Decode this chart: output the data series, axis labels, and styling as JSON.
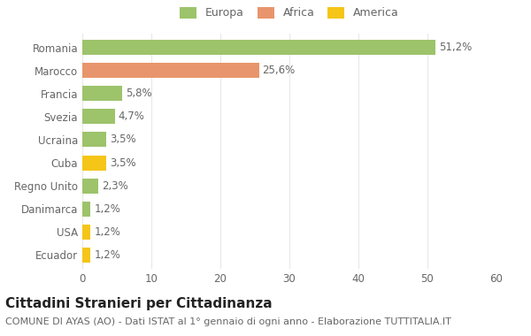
{
  "categories": [
    "Ecuador",
    "USA",
    "Danimarca",
    "Regno Unito",
    "Cuba",
    "Ucraina",
    "Svezia",
    "Francia",
    "Marocco",
    "Romania"
  ],
  "values": [
    1.2,
    1.2,
    1.2,
    2.3,
    3.5,
    3.5,
    4.7,
    5.8,
    25.6,
    51.2
  ],
  "labels": [
    "1,2%",
    "1,2%",
    "1,2%",
    "2,3%",
    "3,5%",
    "3,5%",
    "4,7%",
    "5,8%",
    "25,6%",
    "51,2%"
  ],
  "colors": [
    "#f5c518",
    "#f5c518",
    "#9dc36b",
    "#9dc36b",
    "#f5c518",
    "#9dc36b",
    "#9dc36b",
    "#9dc36b",
    "#e8956d",
    "#9dc36b"
  ],
  "legend": [
    {
      "label": "Europa",
      "color": "#9dc36b"
    },
    {
      "label": "Africa",
      "color": "#e8956d"
    },
    {
      "label": "America",
      "color": "#f5c518"
    }
  ],
  "title": "Cittadini Stranieri per Cittadinanza",
  "subtitle": "COMUNE DI AYAS (AO) - Dati ISTAT al 1° gennaio di ogni anno - Elaborazione TUTTITALIA.IT",
  "xlim": [
    0,
    60
  ],
  "xticks": [
    0,
    10,
    20,
    30,
    40,
    50,
    60
  ],
  "background_color": "#ffffff",
  "grid_color": "#e8e8e8",
  "bar_height": 0.65,
  "title_fontsize": 11,
  "subtitle_fontsize": 8,
  "label_fontsize": 8.5,
  "tick_fontsize": 8.5
}
